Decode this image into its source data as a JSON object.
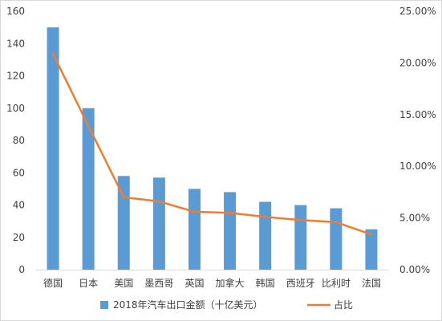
{
  "chart_data": {
    "type": "bar+line",
    "categories": [
      "德国",
      "日本",
      "美国",
      "墨西哥",
      "英国",
      "加拿大",
      "韩国",
      "西班牙",
      "比利时",
      "法国"
    ],
    "series": [
      {
        "name": "2018年汽车出口金额（十亿美元）",
        "type": "bar",
        "axis": "left",
        "values": [
          150,
          100,
          58,
          57,
          50,
          48,
          42,
          40,
          38,
          25
        ]
      },
      {
        "name": "占比",
        "type": "line",
        "axis": "right",
        "values": [
          0.209,
          0.139,
          0.07,
          0.066,
          0.056,
          0.055,
          0.051,
          0.048,
          0.046,
          0.034
        ]
      }
    ],
    "y_left": {
      "min": 0,
      "max": 160,
      "ticks": [
        "0",
        "20",
        "40",
        "60",
        "80",
        "100",
        "120",
        "140",
        "160"
      ]
    },
    "y_right": {
      "min": 0,
      "max": 0.25,
      "ticks": [
        "0.00%",
        "5.00%",
        "10.00%",
        "15.00%",
        "20.00%",
        "25.00%"
      ]
    },
    "grid": false,
    "legend_position": "bottom",
    "colors": {
      "bar": "#5B9BD5",
      "line": "#ED7D31",
      "text": "#404040",
      "axis": "#D9D9D9",
      "border": "#D9D9D9"
    }
  }
}
